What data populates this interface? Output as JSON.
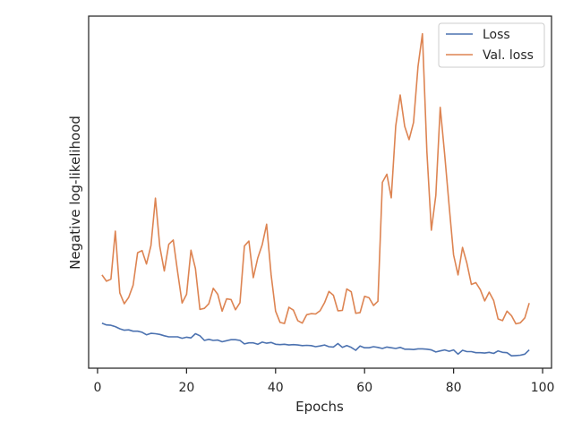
{
  "chart_data": {
    "type": "line",
    "xlabel": "Epochs",
    "ylabel": "Negative log-likelihood",
    "xlim": [
      -2,
      102
    ],
    "ylim": [
      0,
      100
    ],
    "xticks": [
      0,
      20,
      40,
      60,
      80,
      100
    ],
    "legend_position": "top-right",
    "grid": false,
    "series": [
      {
        "name": "Loss",
        "color": "#4c72b0",
        "x": [
          1,
          2,
          3,
          4,
          5,
          6,
          7,
          8,
          9,
          10,
          11,
          12,
          13,
          14,
          15,
          16,
          17,
          18,
          19,
          20,
          21,
          22,
          23,
          24,
          25,
          26,
          27,
          28,
          29,
          30,
          31,
          32,
          33,
          34,
          35,
          36,
          37,
          38,
          39,
          40,
          41,
          42,
          43,
          44,
          45,
          46,
          47,
          48,
          49,
          50,
          51,
          52,
          53,
          54,
          55,
          56,
          57,
          58,
          59,
          60,
          61,
          62,
          63,
          64,
          65,
          66,
          67,
          68,
          69,
          70,
          71,
          72,
          73,
          74,
          75,
          76,
          77,
          78,
          79,
          80,
          81,
          82,
          83,
          84,
          85,
          86,
          87,
          88,
          89,
          90,
          91,
          92,
          93,
          94,
          95,
          96,
          97
        ],
        "values": [
          12.8,
          12.3,
          12.2,
          11.8,
          11.2,
          10.8,
          10.9,
          10.5,
          10.5,
          10.2,
          9.5,
          9.9,
          9.8,
          9.6,
          9.2,
          8.9,
          8.9,
          8.9,
          8.5,
          8.8,
          8.6,
          9.8,
          9.2,
          7.9,
          8.2,
          7.9,
          8.0,
          7.5,
          7.8,
          8.1,
          8.1,
          7.9,
          6.9,
          7.2,
          7.2,
          6.8,
          7.4,
          7.1,
          7.3,
          6.8,
          6.7,
          6.8,
          6.6,
          6.7,
          6.6,
          6.4,
          6.5,
          6.4,
          6.1,
          6.3,
          6.6,
          6.1,
          6.0,
          7.0,
          5.9,
          6.4,
          5.9,
          5.1,
          6.3,
          5.8,
          5.8,
          6.1,
          5.9,
          5.6,
          6.0,
          5.8,
          5.6,
          5.9,
          5.4,
          5.4,
          5.3,
          5.5,
          5.5,
          5.4,
          5.2,
          4.6,
          4.9,
          5.2,
          4.8,
          5.2,
          4.0,
          5.1,
          4.7,
          4.7,
          4.4,
          4.4,
          4.3,
          4.5,
          4.2,
          4.9,
          4.5,
          4.4,
          3.5,
          3.6,
          3.7,
          4.0,
          5.2
        ]
      },
      {
        "name": "Val. loss",
        "color": "#dd8452",
        "x": [
          1,
          2,
          3,
          4,
          5,
          6,
          7,
          8,
          9,
          10,
          11,
          12,
          13,
          14,
          15,
          16,
          17,
          18,
          19,
          20,
          21,
          22,
          23,
          24,
          25,
          26,
          27,
          28,
          29,
          30,
          31,
          32,
          33,
          34,
          35,
          36,
          37,
          38,
          39,
          40,
          41,
          42,
          43,
          44,
          45,
          46,
          47,
          48,
          49,
          50,
          51,
          52,
          53,
          54,
          55,
          56,
          57,
          58,
          59,
          60,
          61,
          62,
          63,
          64,
          65,
          66,
          67,
          68,
          69,
          70,
          71,
          72,
          73,
          74,
          75,
          76,
          77,
          78,
          79,
          80,
          81,
          82,
          83,
          84,
          85,
          86,
          87,
          88,
          89,
          90,
          91,
          92,
          93,
          94,
          95,
          96,
          97
        ],
        "values": [
          26.5,
          24.7,
          25.3,
          38.9,
          21.4,
          18.3,
          20.1,
          23.6,
          32.8,
          33.4,
          29.6,
          34.8,
          48.3,
          34.5,
          27.6,
          35.2,
          36.4,
          27.3,
          18.5,
          21.0,
          33.5,
          28.3,
          16.7,
          17.0,
          18.3,
          22.7,
          21.0,
          16.2,
          19.7,
          19.5,
          16.6,
          18.6,
          34.7,
          36.1,
          25.7,
          31.3,
          35.1,
          40.9,
          26.6,
          16.2,
          13.0,
          12.7,
          17.3,
          16.5,
          13.5,
          12.8,
          15.2,
          15.5,
          15.4,
          16.3,
          18.6,
          21.8,
          20.7,
          16.3,
          16.4,
          22.5,
          21.7,
          15.6,
          15.8,
          20.4,
          20.0,
          17.8,
          19.0,
          52.8,
          55.1,
          48.4,
          68.8,
          77.6,
          68.7,
          64.9,
          69.8,
          85.7,
          95.0,
          61.5,
          39.2,
          49.1,
          74.1,
          60.6,
          46.0,
          32.2,
          26.5,
          34.3,
          29.8,
          23.8,
          24.3,
          22.3,
          19.1,
          21.6,
          19.2,
          14.0,
          13.5,
          16.2,
          14.9,
          12.6,
          12.9,
          14.3,
          18.5
        ]
      }
    ]
  }
}
